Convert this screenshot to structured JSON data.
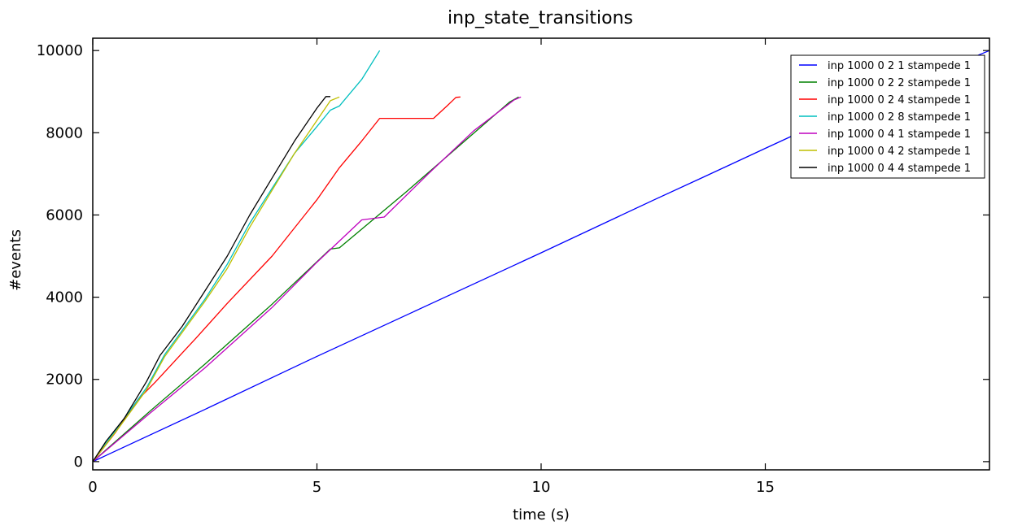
{
  "chart_data": {
    "type": "line",
    "title": "inp_state_transitions",
    "xlabel": "time (s)",
    "ylabel": "#events",
    "xlim": [
      0,
      20
    ],
    "ylim": [
      -200,
      10300
    ],
    "xticks": [
      0,
      5,
      10,
      15
    ],
    "yticks": [
      0,
      2000,
      4000,
      6000,
      8000,
      10000
    ],
    "grid": false,
    "legend_position": "top-right",
    "series": [
      {
        "name": "inp 1000 0 2 1 stampede 1",
        "color": "#0000ff",
        "points": [
          [
            0,
            0
          ],
          [
            2.5,
            1270
          ],
          [
            5,
            2560
          ],
          [
            7.5,
            3820
          ],
          [
            10,
            5080
          ],
          [
            12.5,
            6360
          ],
          [
            13.6,
            6910
          ],
          [
            15,
            7620
          ],
          [
            17.5,
            8880
          ],
          [
            20,
            10000
          ]
        ]
      },
      {
        "name": "inp 1000 0 2 2 stampede 1",
        "color": "#008000",
        "points": [
          [
            0,
            0
          ],
          [
            1.3,
            1250
          ],
          [
            2.5,
            2370
          ],
          [
            4,
            3830
          ],
          [
            5.3,
            5170
          ],
          [
            5.5,
            5200
          ],
          [
            7,
            6570
          ],
          [
            8.5,
            7990
          ],
          [
            9.3,
            8750
          ],
          [
            9.5,
            8870
          ]
        ]
      },
      {
        "name": "inp 1000 0 2 4 stampede 1",
        "color": "#ff0000",
        "points": [
          [
            0,
            0
          ],
          [
            0.5,
            700
          ],
          [
            1,
            1500
          ],
          [
            1.4,
            1940
          ],
          [
            2,
            2650
          ],
          [
            2.3,
            3000
          ],
          [
            3,
            3850
          ],
          [
            4,
            5000
          ],
          [
            5,
            6370
          ],
          [
            5.5,
            7150
          ],
          [
            6,
            7800
          ],
          [
            6.4,
            8350
          ],
          [
            7.6,
            8350
          ],
          [
            7.9,
            8650
          ],
          [
            8.1,
            8860
          ],
          [
            8.2,
            8870
          ]
        ]
      },
      {
        "name": "inp 1000 0 2 8 stampede 1",
        "color": "#00bfbf",
        "points": [
          [
            0,
            0
          ],
          [
            0.6,
            900
          ],
          [
            1.2,
            1800
          ],
          [
            1.6,
            2600
          ],
          [
            2,
            3200
          ],
          [
            2.5,
            3950
          ],
          [
            3,
            4800
          ],
          [
            3.5,
            5800
          ],
          [
            4,
            6650
          ],
          [
            4.5,
            7500
          ],
          [
            5,
            8150
          ],
          [
            5.3,
            8550
          ],
          [
            5.5,
            8650
          ],
          [
            6,
            9300
          ],
          [
            6.4,
            10000
          ]
        ]
      },
      {
        "name": "inp 1000 0 4 1 stampede 1",
        "color": "#bf00bf",
        "points": [
          [
            0,
            0
          ],
          [
            1.3,
            1200
          ],
          [
            2.5,
            2280
          ],
          [
            4,
            3750
          ],
          [
            5,
            4850
          ],
          [
            6,
            5880
          ],
          [
            6.5,
            5950
          ],
          [
            7.5,
            7020
          ],
          [
            8.5,
            8050
          ],
          [
            9.4,
            8800
          ],
          [
            9.55,
            8870
          ]
        ]
      },
      {
        "name": "inp 1000 0 4 2 stampede 1",
        "color": "#bfbf00",
        "points": [
          [
            0,
            0
          ],
          [
            0.6,
            850
          ],
          [
            1.2,
            1750
          ],
          [
            1.6,
            2550
          ],
          [
            2,
            3150
          ],
          [
            2.5,
            3900
          ],
          [
            3,
            4700
          ],
          [
            3.5,
            5700
          ],
          [
            4,
            6600
          ],
          [
            4.5,
            7500
          ],
          [
            5,
            8300
          ],
          [
            5.3,
            8780
          ],
          [
            5.5,
            8870
          ]
        ]
      },
      {
        "name": "inp 1000 0 4 4 stampede 1",
        "color": "#000000",
        "points": [
          [
            0,
            0
          ],
          [
            0.3,
            500
          ],
          [
            0.7,
            1050
          ],
          [
            1.2,
            1950
          ],
          [
            1.5,
            2580
          ],
          [
            2,
            3300
          ],
          [
            2.5,
            4150
          ],
          [
            3,
            5000
          ],
          [
            3.5,
            6000
          ],
          [
            4,
            6900
          ],
          [
            4.5,
            7800
          ],
          [
            5,
            8600
          ],
          [
            5.2,
            8880
          ],
          [
            5.3,
            8880
          ]
        ]
      }
    ]
  }
}
